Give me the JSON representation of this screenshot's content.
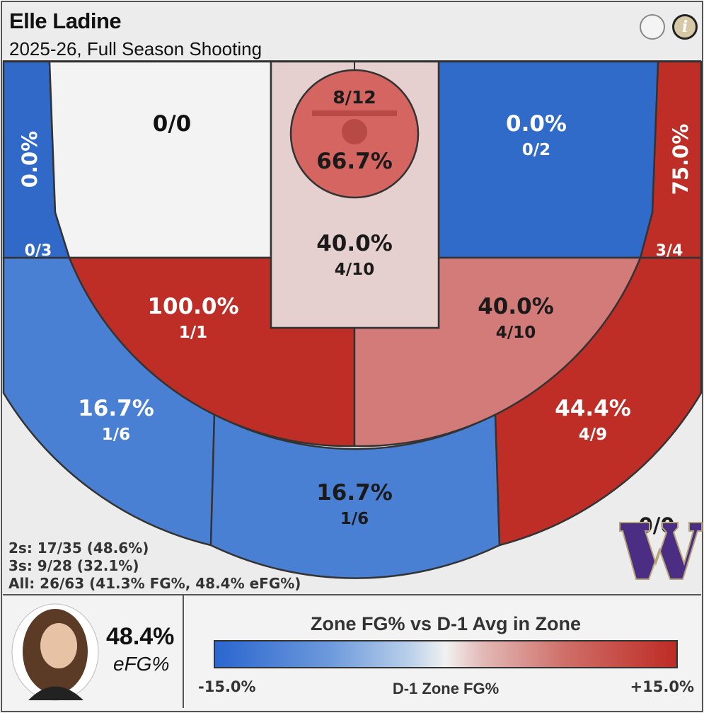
{
  "header": {
    "player_name": "Elle Ladine",
    "subtitle": "2025-26, Full Season Shooting",
    "info_icon_glyph": "i"
  },
  "chart_data": {
    "type": "heatmap",
    "title": "Zone FG% vs D-1 Avg in Zone",
    "zones": [
      {
        "id": "left-corner-3",
        "pct": "0.0%",
        "made_att": "0/3",
        "color": "#3169c9",
        "text": "#ffffff"
      },
      {
        "id": "left-mid-upper",
        "pct": "",
        "made_att": "0/0",
        "color": "#f3f3f3",
        "text": "#111111"
      },
      {
        "id": "restricted-area",
        "pct": "66.7%",
        "made_att": "8/12",
        "color": "#d46560",
        "text": "#1a1a1a"
      },
      {
        "id": "paint",
        "pct": "40.0%",
        "made_att": "4/10",
        "color": "#e6cfcf",
        "text": "#1a1a1a"
      },
      {
        "id": "right-mid-upper",
        "pct": "0.0%",
        "made_att": "0/2",
        "color": "#316bc9",
        "text": "#ffffff"
      },
      {
        "id": "right-corner-3",
        "pct": "75.0%",
        "made_att": "3/4",
        "color": "#be2d26",
        "text": "#ffffff"
      },
      {
        "id": "left-elbow-mid",
        "pct": "100.0%",
        "made_att": "1/1",
        "color": "#be2d26",
        "text": "#ffffff"
      },
      {
        "id": "right-elbow-mid",
        "pct": "40.0%",
        "made_att": "4/10",
        "color": "#d27b78",
        "text": "#1a1a1a"
      },
      {
        "id": "left-wing-3",
        "pct": "16.7%",
        "made_att": "1/6",
        "color": "#4a80d4",
        "text": "#ffffff"
      },
      {
        "id": "top-key-3",
        "pct": "16.7%",
        "made_att": "1/6",
        "color": "#4a80d4",
        "text": "#1a1a1a"
      },
      {
        "id": "right-wing-3",
        "pct": "44.4%",
        "made_att": "4/9",
        "color": "#be2d26",
        "text": "#ffffff"
      }
    ],
    "outside_zone": {
      "made_att": "0/0"
    },
    "legend": {
      "min_label": "-15.0%",
      "max_label": "+15.0%",
      "center_label": "D-1 Zone FG%",
      "low_color": "#2b66cf",
      "mid_color": "#f1f1f1",
      "high_color": "#be2b24"
    }
  },
  "summary": {
    "twos": "2s: 17/35 (48.6%)",
    "threes": "3s: 9/28 (32.1%)",
    "all": "All: 26/63 (41.3% FG%, 48.4% eFG%)"
  },
  "player_card": {
    "efg_value": "48.4%",
    "efg_label": "eFG%"
  },
  "logo": {
    "icon": "washington-w-logo",
    "color": "#4b2e83",
    "outline": "#b7a57a"
  }
}
